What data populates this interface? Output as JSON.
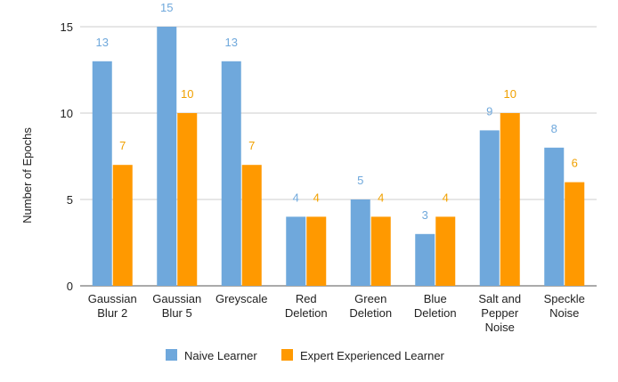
{
  "chart_data": {
    "type": "bar",
    "title": "",
    "xlabel": "",
    "ylabel": "Number of Epochs",
    "ylim": [
      0,
      15
    ],
    "yticks": [
      0,
      5,
      10,
      15
    ],
    "grid": true,
    "legend_position": "bottom",
    "categories": [
      [
        "Gaussian",
        "Blur 2"
      ],
      [
        "Gaussian",
        "Blur 5"
      ],
      [
        "Greyscale"
      ],
      [
        "Red",
        "Deletion"
      ],
      [
        "Green",
        "Deletion"
      ],
      [
        "Blue",
        "Deletion"
      ],
      [
        "Salt and",
        "Pepper",
        "Noise"
      ],
      [
        "Speckle",
        "Noise"
      ]
    ],
    "series": [
      {
        "name": "Naive Learner",
        "color": "#6fa8dc",
        "label_color": "#6fa8dc",
        "values": [
          13,
          15,
          13,
          4,
          5,
          3,
          9,
          8
        ]
      },
      {
        "name": "Expert Experienced Learner",
        "color": "#ff9900",
        "label_color": "#f0a000",
        "values": [
          7,
          10,
          7,
          4,
          4,
          4,
          10,
          6
        ]
      }
    ]
  }
}
